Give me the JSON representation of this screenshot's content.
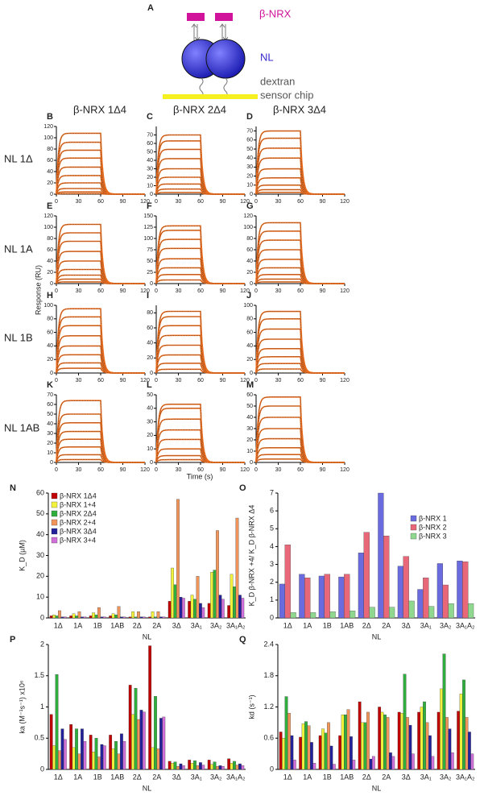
{
  "diagram": {
    "panel": "A",
    "labels": [
      "β-NRX",
      "NL",
      "dextran",
      "sensor chip"
    ]
  },
  "column_titles": [
    "β-NRX 1Δ4",
    "β-NRX 2Δ4",
    "β-NRX 3Δ4"
  ],
  "row_labels": [
    "NL 1Δ",
    "NL 1A",
    "NL 1B",
    "NL 1AB"
  ],
  "x_label": "Time (s)",
  "y_label": "Response (RU)",
  "chart_data": [
    {
      "type": "sensorgram",
      "panel": "B",
      "xlim": [
        0,
        120
      ],
      "xticks": [
        0,
        30,
        60,
        90,
        120
      ],
      "ylim": [
        0,
        120
      ],
      "yticks": [
        0,
        20,
        40,
        60,
        80,
        100,
        120
      ],
      "plateaus": [
        108,
        92,
        78,
        64,
        48,
        33,
        20,
        10,
        4,
        1
      ]
    },
    {
      "type": "sensorgram",
      "panel": "C",
      "xlim": [
        0,
        120
      ],
      "xticks": [
        0,
        30,
        60,
        90,
        120
      ],
      "ylim": [
        0,
        80
      ],
      "yticks": [
        0,
        10,
        20,
        30,
        40,
        50,
        60,
        70
      ],
      "plateaus": [
        70,
        63,
        53,
        42,
        30,
        20,
        12,
        6,
        2
      ]
    },
    {
      "type": "sensorgram",
      "panel": "D",
      "xlim": [
        0,
        120
      ],
      "xticks": [
        0,
        30,
        60,
        90,
        120
      ],
      "ylim": [
        0,
        75
      ],
      "yticks": [
        0,
        10,
        20,
        30,
        40,
        50,
        60,
        70
      ],
      "plateaus": [
        70,
        62,
        51,
        40,
        28,
        18,
        10,
        5,
        2
      ]
    },
    {
      "type": "sensorgram",
      "panel": "E",
      "xlim": [
        0,
        120
      ],
      "xticks": [
        0,
        30,
        60,
        90,
        120
      ],
      "ylim": [
        0,
        120
      ],
      "yticks": [
        0,
        20,
        40,
        60,
        80,
        100,
        120
      ],
      "plateaus": [
        105,
        90,
        75,
        57,
        40,
        25,
        15,
        8,
        3
      ]
    },
    {
      "type": "sensorgram",
      "panel": "F",
      "xlim": [
        0,
        120
      ],
      "xticks": [
        0,
        30,
        60,
        90,
        120
      ],
      "ylim": [
        0,
        150
      ],
      "yticks": [
        0,
        25,
        50,
        75,
        100,
        125,
        150
      ],
      "plateaus": [
        128,
        118,
        98,
        78,
        55,
        35,
        20,
        8
      ]
    },
    {
      "type": "sensorgram",
      "panel": "G",
      "xlim": [
        0,
        120
      ],
      "xticks": [
        0,
        30,
        60,
        90,
        120
      ],
      "ylim": [
        0,
        120
      ],
      "yticks": [
        0,
        20,
        40,
        60,
        80,
        100,
        120
      ],
      "plateaus": [
        108,
        93,
        77,
        60,
        43,
        28,
        16,
        8,
        3
      ]
    },
    {
      "type": "sensorgram",
      "panel": "H",
      "xlim": [
        0,
        120
      ],
      "xticks": [
        0,
        30,
        60,
        90,
        120
      ],
      "ylim": [
        0,
        100
      ],
      "yticks": [
        0,
        20,
        40,
        60,
        80,
        100
      ],
      "plateaus": [
        95,
        83,
        70,
        55,
        40,
        27,
        15,
        7
      ]
    },
    {
      "type": "sensorgram",
      "panel": "I",
      "xlim": [
        0,
        120
      ],
      "xticks": [
        0,
        30,
        60,
        90,
        120
      ],
      "ylim": [
        0,
        90
      ],
      "yticks": [
        0,
        20,
        40,
        60,
        80
      ],
      "plateaus": [
        82,
        75,
        63,
        50,
        37,
        24,
        13,
        5
      ]
    },
    {
      "type": "sensorgram",
      "panel": "J",
      "xlim": [
        0,
        120
      ],
      "xticks": [
        0,
        30,
        60,
        90,
        120
      ],
      "ylim": [
        0,
        100
      ],
      "yticks": [
        0,
        20,
        40,
        60,
        80,
        100
      ],
      "plateaus": [
        91,
        80,
        65,
        50,
        36,
        24,
        14,
        6
      ]
    },
    {
      "type": "sensorgram",
      "panel": "K",
      "xlim": [
        0,
        120
      ],
      "xticks": [
        0,
        30,
        60,
        90,
        120
      ],
      "ylim": [
        0,
        70
      ],
      "yticks": [
        0,
        10,
        20,
        30,
        40,
        50,
        60,
        70
      ],
      "plateaus": [
        64,
        50,
        41,
        32,
        24,
        16,
        8,
        3
      ]
    },
    {
      "type": "sensorgram",
      "panel": "L",
      "xlim": [
        0,
        120
      ],
      "xticks": [
        0,
        30,
        60,
        90,
        120
      ],
      "ylim": [
        0,
        50
      ],
      "yticks": [
        0,
        10,
        20,
        30,
        40,
        50
      ],
      "plateaus": [
        43,
        40,
        32,
        24,
        17,
        10,
        5,
        2
      ]
    },
    {
      "type": "sensorgram",
      "panel": "M",
      "xlim": [
        0,
        120
      ],
      "xticks": [
        0,
        30,
        60,
        90,
        120
      ],
      "ylim": [
        0,
        60
      ],
      "yticks": [
        0,
        10,
        20,
        30,
        40,
        50,
        60
      ],
      "plateaus": [
        58,
        50,
        40,
        30,
        21,
        13,
        7,
        3
      ]
    },
    {
      "type": "bar",
      "panel": "N",
      "x_label": "NL",
      "y_label": "K_D (µM)",
      "legend": "top-left",
      "categories": [
        "1Δ",
        "1A",
        "1B",
        "1AB",
        "2Δ",
        "2A",
        "3Δ",
        "3A₁",
        "3A₂",
        "3A₁A₂"
      ],
      "ylim": [
        0,
        60
      ],
      "yticks": [
        0,
        10,
        20,
        30,
        40,
        50,
        60
      ],
      "series": [
        {
          "name": "β-NRX 1Δ4",
          "color": "#c00000",
          "values": [
            1,
            1,
            1,
            1,
            0.5,
            0.5,
            8,
            8,
            7,
            6
          ]
        },
        {
          "name": "β-NRX 1+4",
          "color": "#f2f23c",
          "values": [
            1.5,
            2,
            2.5,
            2,
            3,
            3,
            24,
            11,
            22,
            21
          ]
        },
        {
          "name": "β-NRX 2Δ4",
          "color": "#2fae3e",
          "values": [
            1,
            1,
            1.5,
            1.5,
            0.5,
            0.5,
            16,
            9,
            23,
            15
          ]
        },
        {
          "name": "β-NRX 2+4",
          "color": "#f0945a",
          "values": [
            3.5,
            3,
            5,
            5.5,
            3,
            3,
            57,
            20,
            42,
            48
          ]
        },
        {
          "name": "β-NRX 3Δ4",
          "color": "#22229a",
          "values": [
            0.5,
            0.5,
            0.5,
            0.5,
            0.5,
            0.5,
            10,
            7,
            11,
            11
          ]
        },
        {
          "name": "β-NRX 3+4",
          "color": "#d070d8",
          "values": [
            0.5,
            0.5,
            0.5,
            0.5,
            0.5,
            0.5,
            9.5,
            5,
            9,
            9.5
          ]
        }
      ]
    },
    {
      "type": "bar",
      "panel": "O",
      "x_label": "NL",
      "y_label": "K_D β-NRX +4/ K_D β-NRX Δ4",
      "legend": "top-right",
      "categories": [
        "1Δ",
        "1A",
        "1B",
        "1AB",
        "2Δ",
        "2A",
        "3Δ",
        "3A₁",
        "3A₂",
        "3A₁A₂"
      ],
      "ylim": [
        0,
        7
      ],
      "yticks": [
        0,
        1,
        2,
        3,
        4,
        5,
        6,
        7
      ],
      "series": [
        {
          "name": "β-NRX 1",
          "color": "#6b6be0",
          "values": [
            1.9,
            2.45,
            2.35,
            2.3,
            3.65,
            7,
            2.9,
            1.6,
            3.05,
            3.2
          ]
        },
        {
          "name": "β-NRX 2",
          "color": "#e8687a",
          "values": [
            4.1,
            2.25,
            2.45,
            2.45,
            4.8,
            4.6,
            3.45,
            2.25,
            1.85,
            3.15
          ]
        },
        {
          "name": "β-NRX 3",
          "color": "#90d890",
          "values": [
            0.3,
            0.3,
            0.35,
            0.4,
            0.6,
            0.6,
            0.95,
            0.65,
            0.8,
            0.8
          ]
        }
      ]
    },
    {
      "type": "bar",
      "panel": "P",
      "x_label": "NL",
      "y_label": "ka (M⁻¹s⁻¹) x10⁶",
      "categories": [
        "1Δ",
        "1A",
        "1B",
        "1AB",
        "2Δ",
        "2A",
        "3Δ",
        "3A₁",
        "3A₂",
        "3A₁A₂"
      ],
      "ylim": [
        0,
        2
      ],
      "yticks": [
        0,
        0.5,
        1,
        1.5,
        2
      ],
      "series": [
        {
          "name": "β-NRX 1Δ4",
          "color": "#c00000",
          "values": [
            0.88,
            0.72,
            0.55,
            0.55,
            1.35,
            1.98,
            0.13,
            0.15,
            0.15,
            0.17
          ]
        },
        {
          "name": "β-NRX 1+4",
          "color": "#f2f23c",
          "values": [
            0.38,
            0.35,
            0.28,
            0.33,
            0.88,
            0.35,
            0.1,
            0.1,
            0.08,
            0.1
          ]
        },
        {
          "name": "β-NRX 2Δ4",
          "color": "#2fae3e",
          "values": [
            1.52,
            0.65,
            0.5,
            0.45,
            1.3,
            1.17,
            0.12,
            0.14,
            0.12,
            0.13
          ]
        },
        {
          "name": "β-NRX 2+4",
          "color": "#f0945a",
          "values": [
            0.3,
            0.25,
            0.2,
            0.25,
            0.8,
            0.33,
            0.05,
            0.06,
            0.05,
            0.07
          ]
        },
        {
          "name": "β-NRX 3Δ4",
          "color": "#22229a",
          "values": [
            0.65,
            0.65,
            0.4,
            0.57,
            0.95,
            0.82,
            0.09,
            0.11,
            0.06,
            0.09
          ]
        },
        {
          "name": "β-NRX 3+4",
          "color": "#d070d8",
          "values": [
            0.48,
            0.45,
            0.38,
            0.45,
            0.92,
            0.84,
            0.06,
            0.07,
            0.05,
            0.06
          ]
        }
      ]
    },
    {
      "type": "bar",
      "panel": "Q",
      "x_label": "NL",
      "y_label": "kd (s⁻¹)",
      "categories": [
        "1Δ",
        "1A",
        "1B",
        "1AB",
        "2Δ",
        "2A",
        "3Δ",
        "3A₁",
        "3A₂",
        "3A₁A₂"
      ],
      "ylim": [
        0,
        2.4
      ],
      "yticks": [
        0,
        0.6,
        1.2,
        1.8,
        2.4
      ],
      "series": [
        {
          "name": "β-NRX 1Δ4",
          "color": "#c00000",
          "values": [
            0.72,
            0.62,
            0.65,
            0.65,
            1.3,
            1.2,
            1.1,
            1.1,
            1.1,
            1.12
          ]
        },
        {
          "name": "β-NRX 1+4",
          "color": "#f2f23c",
          "values": [
            0.6,
            0.88,
            0.78,
            1.05,
            0.9,
            1.1,
            1.08,
            1.2,
            1.55,
            1.45
          ]
        },
        {
          "name": "β-NRX 2Δ4",
          "color": "#2fae3e",
          "values": [
            1.4,
            0.92,
            0.7,
            1.05,
            0.9,
            1.05,
            1.83,
            1.3,
            2.22,
            1.72
          ]
        },
        {
          "name": "β-NRX 2+4",
          "color": "#f0945a",
          "values": [
            1.08,
            0.84,
            0.9,
            1.15,
            1.1,
            1,
            1,
            0.9,
            1,
            1
          ]
        },
        {
          "name": "β-NRX 3Δ4",
          "color": "#22229a",
          "values": [
            0.65,
            0.52,
            0.45,
            0.63,
            0.2,
            0.32,
            0.85,
            0.65,
            0.78,
            0.72
          ]
        },
        {
          "name": "β-NRX 3+4",
          "color": "#d070d8",
          "values": [
            0.18,
            0.12,
            0.1,
            0.18,
            0.25,
            0.25,
            0.3,
            0.25,
            0.32,
            0.3
          ]
        }
      ]
    }
  ]
}
